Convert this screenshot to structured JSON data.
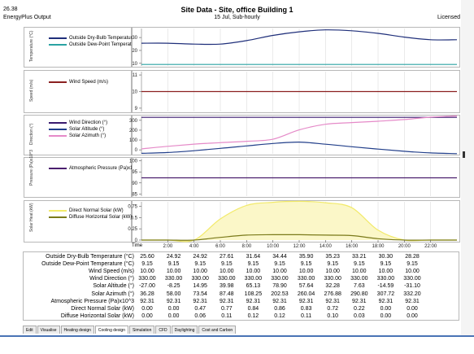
{
  "header": {
    "version": "26.38",
    "source": "EnergyPlus Output",
    "title": "Site Data - Site, office Building 1",
    "subtitle": "15 Jul, Sub-hourly",
    "license": "Licensed"
  },
  "panels": [
    {
      "axis_label": "Temperature (°C)",
      "legend": [
        "Outside Dry-Bulb Temperature (°C)",
        "Outside Dew-Point Temperature (°C)"
      ]
    },
    {
      "axis_label": "Speed (m/s)",
      "legend": [
        "Wind Speed (m/s)"
      ]
    },
    {
      "axis_label": "Direction (°)",
      "legend": [
        "Wind Direction (°)",
        "Solar Altitude (°)",
        "Solar Azimuth (°)"
      ]
    },
    {
      "axis_label": "Pressure (Pa)x10^3",
      "legend": [
        "Atmospheric Pressure (Pa)x10^3"
      ]
    },
    {
      "axis_label": "Solar Heat (kW)",
      "legend": [
        "Direct Normal Solar (kW)",
        "Diffuse Horizontal Solar (kW)"
      ]
    }
  ],
  "x_axis_label": "Time",
  "tabs": [
    "Edit",
    "Visualise",
    "Heating design",
    "Cooling design",
    "Simulation",
    "CFD",
    "Daylighting",
    "Cost and Carbon"
  ],
  "active_tab": "Cooling design",
  "colors": {
    "dry_bulb": "#1f2f7a",
    "dew_point": "#2aa3a3",
    "wind_speed": "#8b2020",
    "wind_direction": "#3a1a6e",
    "solar_altitude": "#223f8a",
    "solar_azimuth": "#e58ac8",
    "pressure": "#4a1e6e",
    "direct_normal": "#f2ea6a",
    "diffuse_horizontal": "#7a7a1a",
    "accent_bar": "#4a74b5"
  },
  "table": {
    "rows": [
      {
        "label": "Outside Dry-Bulb Temperature (°C)",
        "values": [
          "25.60",
          "24.92",
          "24.92",
          "27.61",
          "31.64",
          "34.44",
          "35.90",
          "35.23",
          "33.21",
          "30.30",
          "28.28"
        ]
      },
      {
        "label": "Outside Dew-Point Temperature (°C)",
        "values": [
          "9.15",
          "9.15",
          "9.15",
          "9.15",
          "9.15",
          "9.15",
          "9.15",
          "9.15",
          "9.15",
          "9.15",
          "9.15"
        ]
      },
      {
        "label": "Wind Speed (m/s)",
        "values": [
          "10.00",
          "10.00",
          "10.00",
          "10.00",
          "10.00",
          "10.00",
          "10.00",
          "10.00",
          "10.00",
          "10.00",
          "10.00"
        ]
      },
      {
        "label": "Wind Direction (°)",
        "values": [
          "330.00",
          "330.00",
          "330.00",
          "330.00",
          "330.00",
          "330.00",
          "330.00",
          "330.00",
          "330.00",
          "330.00",
          "330.00"
        ]
      },
      {
        "label": "Solar Altitude (°)",
        "values": [
          "-27.00",
          "-8.25",
          "14.95",
          "39.98",
          "65.13",
          "78.90",
          "57.64",
          "32.28",
          "7.63",
          "-14.59",
          "-31.10"
        ]
      },
      {
        "label": "Solar Azimuth (°)",
        "values": [
          "36.28",
          "58.00",
          "73.54",
          "87.48",
          "108.25",
          "202.53",
          "260.04",
          "276.88",
          "290.80",
          "307.72",
          "332.20"
        ]
      },
      {
        "label": "Atmospheric Pressure (Pa)x10^3",
        "values": [
          "92.31",
          "92.31",
          "92.31",
          "92.31",
          "92.31",
          "92.31",
          "92.31",
          "92.31",
          "92.31",
          "92.31",
          "92.31"
        ]
      },
      {
        "label": "Direct Normal Solar (kW)",
        "values": [
          "0.00",
          "0.00",
          "0.47",
          "0.77",
          "0.84",
          "0.86",
          "0.83",
          "0.72",
          "0.22",
          "0.00",
          "0.00"
        ]
      },
      {
        "label": "Diffuse Horizontal Solar (kW)",
        "values": [
          "0.00",
          "0.00",
          "0.06",
          "0.11",
          "0.12",
          "0.12",
          "0.11",
          "0.10",
          "0.03",
          "0.00",
          "0.00"
        ]
      }
    ]
  },
  "chart_data": [
    {
      "type": "line",
      "ylabel": "Temperature (°C)",
      "ylim": [
        8,
        37
      ],
      "yticks": [
        10,
        20,
        30
      ],
      "x": [
        "2:00",
        "4:00",
        "6:00",
        "8:00",
        "10:00",
        "12:00",
        "14:00",
        "16:00",
        "18:00",
        "20:00",
        "22:00"
      ],
      "series": [
        {
          "name": "Outside Dry-Bulb Temperature (°C)",
          "values": [
            25.6,
            24.92,
            24.92,
            27.61,
            31.64,
            34.44,
            35.9,
            35.23,
            33.21,
            30.3,
            28.28
          ]
        },
        {
          "name": "Outside Dew-Point Temperature (°C)",
          "values": [
            9.15,
            9.15,
            9.15,
            9.15,
            9.15,
            9.15,
            9.15,
            9.15,
            9.15,
            9.15,
            9.15
          ]
        }
      ]
    },
    {
      "type": "line",
      "ylabel": "Speed (m/s)",
      "ylim": [
        8.8,
        11.2
      ],
      "yticks": [
        9,
        10,
        11
      ],
      "x": [
        "2:00",
        "4:00",
        "6:00",
        "8:00",
        "10:00",
        "12:00",
        "14:00",
        "16:00",
        "18:00",
        "20:00",
        "22:00"
      ],
      "series": [
        {
          "name": "Wind Speed (m/s)",
          "values": [
            10,
            10,
            10,
            10,
            10,
            10,
            10,
            10,
            10,
            10,
            10
          ]
        }
      ]
    },
    {
      "type": "line",
      "ylabel": "Direction (°)",
      "ylim": [
        -40,
        340
      ],
      "yticks": [
        0,
        100,
        200,
        300
      ],
      "x": [
        "2:00",
        "4:00",
        "6:00",
        "8:00",
        "10:00",
        "12:00",
        "14:00",
        "16:00",
        "18:00",
        "20:00",
        "22:00"
      ],
      "series": [
        {
          "name": "Wind Direction (°)",
          "values": [
            330,
            330,
            330,
            330,
            330,
            330,
            330,
            330,
            330,
            330,
            330
          ]
        },
        {
          "name": "Solar Altitude (°)",
          "values": [
            -27.0,
            -8.25,
            14.95,
            39.98,
            65.13,
            78.9,
            57.64,
            32.28,
            7.63,
            -14.59,
            -31.1
          ]
        },
        {
          "name": "Solar Azimuth (°)",
          "values": [
            36.28,
            58.0,
            73.54,
            87.48,
            108.25,
            202.53,
            260.04,
            276.88,
            290.8,
            307.72,
            332.2
          ]
        }
      ]
    },
    {
      "type": "line",
      "ylabel": "Pressure (Pa)x10^3",
      "ylim": [
        84,
        101
      ],
      "yticks": [
        85,
        90,
        95,
        100
      ],
      "x": [
        "2:00",
        "4:00",
        "6:00",
        "8:00",
        "10:00",
        "12:00",
        "14:00",
        "16:00",
        "18:00",
        "20:00",
        "22:00"
      ],
      "series": [
        {
          "name": "Atmospheric Pressure (Pa)x10^3",
          "values": [
            92.31,
            92.31,
            92.31,
            92.31,
            92.31,
            92.31,
            92.31,
            92.31,
            92.31,
            92.31,
            92.31
          ]
        }
      ]
    },
    {
      "type": "area",
      "ylabel": "Solar Heat (kW)",
      "ylim": [
        0,
        0.85
      ],
      "yticks": [
        0,
        0.25,
        0.5,
        0.75
      ],
      "x": [
        "2:00",
        "4:00",
        "6:00",
        "8:00",
        "10:00",
        "12:00",
        "14:00",
        "16:00",
        "18:00",
        "20:00",
        "22:00"
      ],
      "series": [
        {
          "name": "Direct Normal Solar (kW)",
          "values": [
            0.0,
            0.0,
            0.47,
            0.77,
            0.84,
            0.86,
            0.83,
            0.72,
            0.22,
            0.0,
            0.0
          ]
        },
        {
          "name": "Diffuse Horizontal Solar (kW)",
          "values": [
            0.0,
            0.0,
            0.06,
            0.11,
            0.12,
            0.12,
            0.11,
            0.1,
            0.03,
            0.0,
            0.0
          ]
        }
      ]
    }
  ]
}
